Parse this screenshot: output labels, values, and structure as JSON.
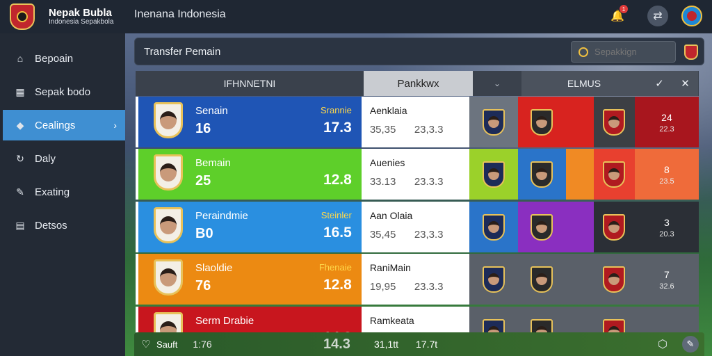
{
  "header": {
    "brand_name": "Nepak Bubla",
    "brand_sub": "Indonesia Sepakbola",
    "app_title": "Inenana Indonesia",
    "notif_count": "1"
  },
  "sidebar": {
    "items": [
      {
        "label": "Bepoain",
        "icon": "home-icon"
      },
      {
        "label": "Sepak bodo",
        "icon": "grid-icon"
      },
      {
        "label": "Cealings",
        "icon": "tag-icon"
      },
      {
        "label": "Daly",
        "icon": "refresh-icon"
      },
      {
        "label": "Exating",
        "icon": "pencil-icon"
      },
      {
        "label": "Detsos",
        "icon": "clipboard-icon"
      }
    ]
  },
  "panel": {
    "title": "Transfer Pemain",
    "search_placeholder": "Sepakkign"
  },
  "table": {
    "headers": [
      "IFHNNETNI",
      "Pankkwx",
      "⌄",
      "ELMUS",
      "✓",
      "✕"
    ],
    "rows": [
      {
        "name": "Senain",
        "number": "16",
        "position": "Srannie",
        "score": "17.3",
        "club": "Aenklaia",
        "val1": "35,35",
        "val2": "23,3.3",
        "end1": "24",
        "end2": "22.3",
        "color": "#1f55b5",
        "c1": "#6c747f",
        "c2": "#d8231f",
        "c3": "#d8231f",
        "c4": "#3c3f44",
        "endc": "#a8161e"
      },
      {
        "name": "Bemain",
        "number": "25",
        "position": "",
        "score": "12.8",
        "club": "Auenies",
        "val1": "33.13",
        "val2": "23.3.3",
        "end1": "8",
        "end2": "23.5",
        "color": "#5ecf2a",
        "c1": "#9bd12a",
        "c2": "#2a74c9",
        "c3": "#f08a24",
        "c4": "#e8402f",
        "endc": "#ef6b3a"
      },
      {
        "name": "Peraindmie",
        "number": "B0",
        "position": "Steinler",
        "score": "16.5",
        "club": "Aan Olaia",
        "val1": "35,45",
        "val2": "23,3.3",
        "end1": "3",
        "end2": "20.3",
        "color": "#2a8fe0",
        "c1": "#2a74c9",
        "c2": "#8a2fc0",
        "c3": "#8a2fc0",
        "c4": "#2b2f36",
        "endc": "#2b2f36"
      },
      {
        "name": "Slaoldie",
        "number": "76",
        "position": "Fhenaie",
        "score": "12.8",
        "club": "RaniMain",
        "val1": "19,95",
        "val2": "23.3.3",
        "end1": "7",
        "end2": "32.6",
        "color": "#ec8a12",
        "c1": "#5a6069",
        "c2": "#5a6069",
        "c3": "#5a6069",
        "c4": "#5a6069",
        "endc": "#5a6069"
      },
      {
        "name": "Serm Drabie",
        "number": "",
        "position": "",
        "score": "14.3",
        "club": "Ramkeata",
        "val1": "",
        "val2": "",
        "end1": "",
        "end2": "",
        "color": "#c8161e",
        "c1": "#5a6069",
        "c2": "#5a6069",
        "c3": "#5a6069",
        "c4": "#5a6069",
        "endc": "#5a6069"
      }
    ]
  },
  "bottombar": {
    "name": "Sauft",
    "number": "1:76",
    "score": "14.3",
    "val1": "31,1tt",
    "val2": "17.7t"
  }
}
